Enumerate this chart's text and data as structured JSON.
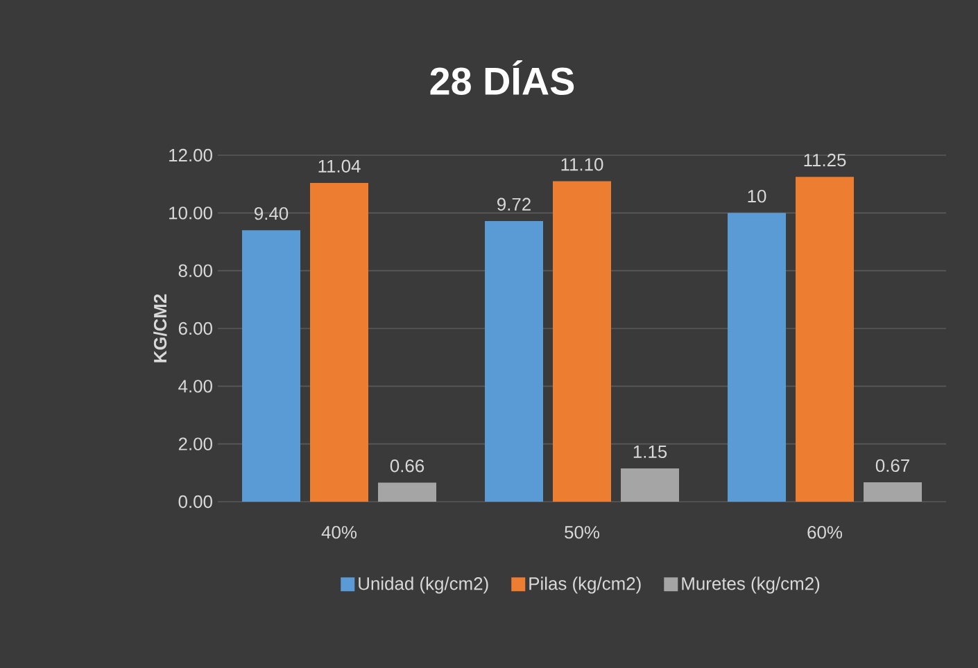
{
  "chart_data": {
    "type": "bar",
    "title": "28 DÍAS",
    "ylabel": "KG/CM2",
    "categories": [
      "40%",
      "50%",
      "60%"
    ],
    "series": [
      {
        "name": "Unidad (kg/cm2)",
        "color": "#5b9bd5",
        "values": [
          9.4,
          9.72,
          10
        ],
        "value_labels": [
          "9.40",
          "9.72",
          "10"
        ]
      },
      {
        "name": "Pilas (kg/cm2)",
        "color": "#ed7d31",
        "values": [
          11.04,
          11.1,
          11.25
        ],
        "value_labels": [
          "11.04",
          "11.10",
          "11.25"
        ]
      },
      {
        "name": "Muretes (kg/cm2)",
        "color": "#a5a5a5",
        "values": [
          0.66,
          1.15,
          0.67
        ],
        "value_labels": [
          "0.66",
          "1.15",
          "0.67"
        ]
      }
    ],
    "ylim": [
      0,
      12
    ],
    "yticks": [
      {
        "value": 0,
        "label": "0.00"
      },
      {
        "value": 2,
        "label": "2.00"
      },
      {
        "value": 4,
        "label": "4.00"
      },
      {
        "value": 6,
        "label": "6.00"
      },
      {
        "value": 8,
        "label": "8.00"
      },
      {
        "value": 10,
        "label": "10.00"
      },
      {
        "value": 12,
        "label": "12.00"
      }
    ],
    "grid": "y",
    "legend": "bottom"
  }
}
